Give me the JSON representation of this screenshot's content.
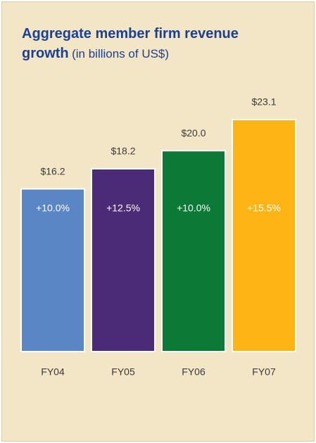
{
  "chart_data": {
    "type": "bar",
    "title": "Aggregate member firm revenue growth",
    "subtitle": "(in billions of US$)",
    "categories": [
      "FY04",
      "FY05",
      "FY06",
      "FY07"
    ],
    "values": [
      16.2,
      18.2,
      20.0,
      23.1
    ],
    "value_labels": [
      "$16.2",
      "$18.2",
      "$20.0",
      "$23.1"
    ],
    "growth_labels": [
      "+10.0%",
      "+12.5%",
      "+10.0%",
      "+15.5%"
    ],
    "colors": [
      "#5b86c5",
      "#4b2a78",
      "#0b7a36",
      "#fdb515"
    ]
  }
}
